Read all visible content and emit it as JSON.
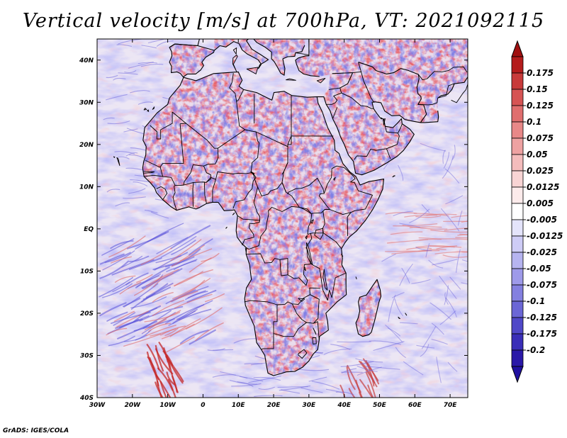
{
  "title": "Vertical velocity [m/s] at 700hPa, VT: 2021092115",
  "credit": "GrADS: IGES/COLA",
  "map": {
    "lat_labels": [
      "40N",
      "30N",
      "20N",
      "10N",
      "EQ",
      "10S",
      "20S",
      "30S",
      "40S"
    ],
    "lat_values": [
      40,
      30,
      20,
      10,
      0,
      -10,
      -20,
      -30,
      -40
    ],
    "lon_labels": [
      "30W",
      "20W",
      "10W",
      "0",
      "10E",
      "20E",
      "30E",
      "40E",
      "50E",
      "60E",
      "70E"
    ],
    "lon_values": [
      -30,
      -20,
      -10,
      0,
      10,
      20,
      30,
      40,
      50,
      60,
      70
    ],
    "lon_range": [
      -30,
      75
    ],
    "lat_range": [
      -40,
      45
    ]
  },
  "colorbar": {
    "labels": [
      "0.175",
      "0.15",
      "0.125",
      "0.1",
      "0.075",
      "0.05",
      "0.025",
      "0.0125",
      "0.005",
      "-0.005",
      "-0.0125",
      "-0.025",
      "-0.05",
      "-0.075",
      "-0.1",
      "-0.125",
      "-0.175",
      "-0.2"
    ],
    "colors": [
      "#b41c1c",
      "#c83a3a",
      "#d65454",
      "#e06e6e",
      "#e88888",
      "#eea2a2",
      "#f4bcbc",
      "#f8d4d4",
      "#fcebeb",
      "#ffffff",
      "#e4e4fb",
      "#ceccf6",
      "#b6b4f0",
      "#9e9ae9",
      "#8480e0",
      "#6b66d6",
      "#5048c8",
      "#3a2eb8",
      "#2a18a8"
    ],
    "top_color": "#a01010",
    "bottom_color": "#2010a0"
  },
  "colors": {
    "ocean_base": "#ece6f4",
    "land_base": "#eadcec",
    "border": "#000000"
  }
}
